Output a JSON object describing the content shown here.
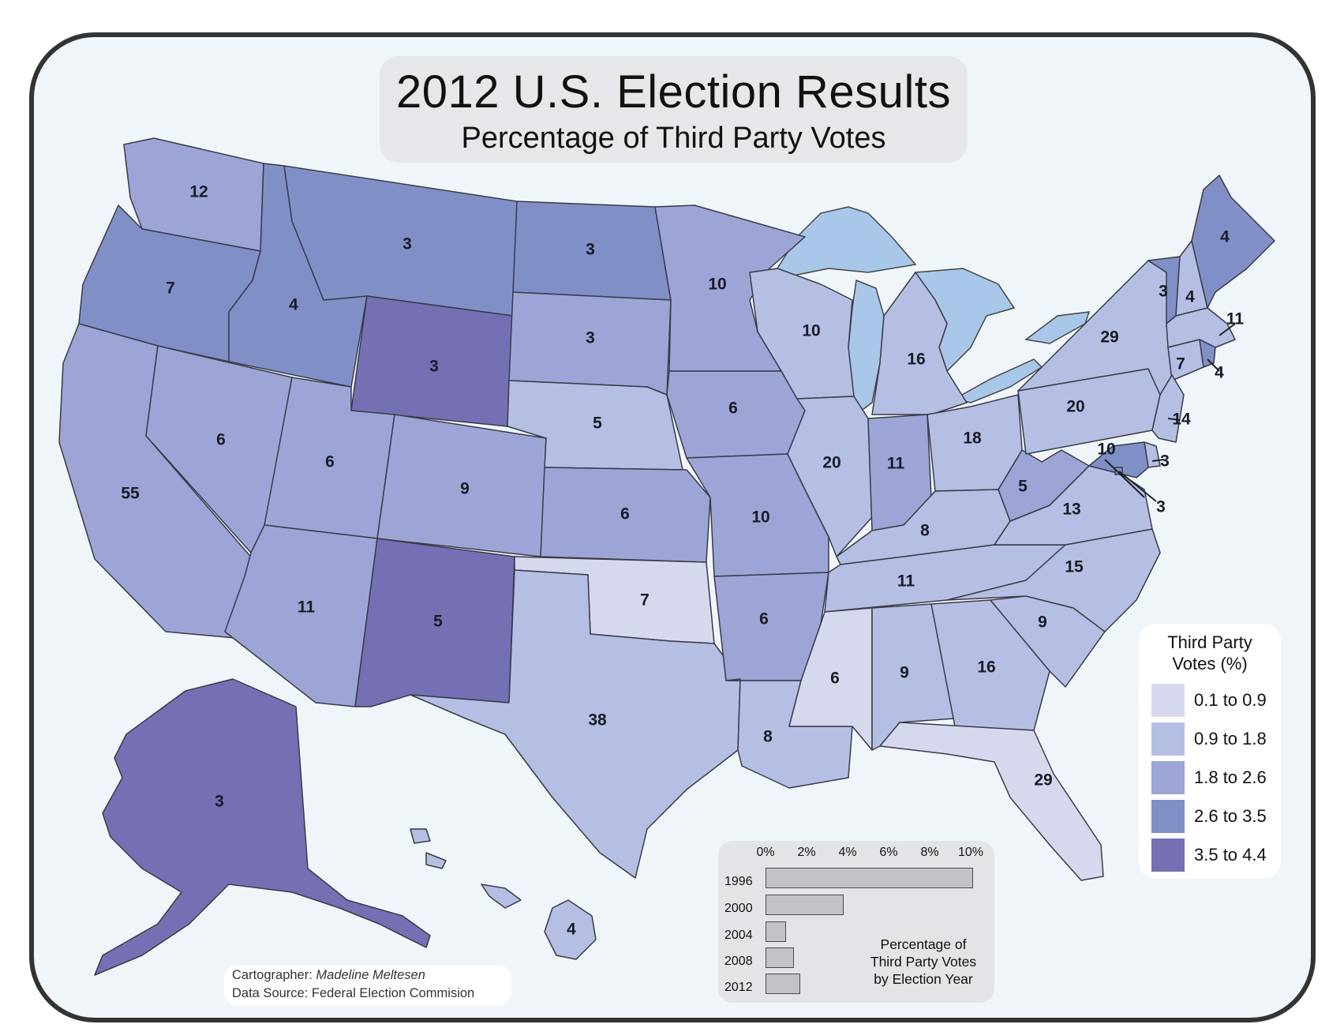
{
  "title": "2012 U.S. Election Results",
  "subtitle": "Percentage of Third Party Votes",
  "colors": {
    "background": "#f0f5fa",
    "frame": "#333333",
    "class_0": "#d6d9ee",
    "class_1": "#b4bfe3",
    "class_2": "#9ca5d6",
    "class_3": "#8090c7",
    "class_4": "#7470b3",
    "water": "#a9c7e8"
  },
  "legend": {
    "title_line1": "Third Party",
    "title_line2": "Votes (%)",
    "items": [
      {
        "label": "0.1 to 0.9",
        "color": "#d6d9ee"
      },
      {
        "label": "0.9 to 1.8",
        "color": "#b4bfe3"
      },
      {
        "label": "1.8 to 2.6",
        "color": "#9ca5d6"
      },
      {
        "label": "2.6 to 3.5",
        "color": "#8090c7"
      },
      {
        "label": "3.5 to 4.4",
        "color": "#7470b3"
      }
    ]
  },
  "states": [
    {
      "name": "WA",
      "electoral_votes": "12",
      "class": 2
    },
    {
      "name": "OR",
      "electoral_votes": "7",
      "class": 3
    },
    {
      "name": "CA",
      "electoral_votes": "55",
      "class": 2
    },
    {
      "name": "NV",
      "electoral_votes": "6",
      "class": 2
    },
    {
      "name": "ID",
      "electoral_votes": "4",
      "class": 3
    },
    {
      "name": "MT",
      "electoral_votes": "3",
      "class": 3
    },
    {
      "name": "WY",
      "electoral_votes": "3",
      "class": 4
    },
    {
      "name": "UT",
      "electoral_votes": "6",
      "class": 2
    },
    {
      "name": "AZ",
      "electoral_votes": "11",
      "class": 2
    },
    {
      "name": "CO",
      "electoral_votes": "9",
      "class": 2
    },
    {
      "name": "NM",
      "electoral_votes": "5",
      "class": 4
    },
    {
      "name": "ND",
      "electoral_votes": "3",
      "class": 3
    },
    {
      "name": "SD",
      "electoral_votes": "3",
      "class": 2
    },
    {
      "name": "NE",
      "electoral_votes": "5",
      "class": 1
    },
    {
      "name": "KS",
      "electoral_votes": "6",
      "class": 2
    },
    {
      "name": "OK",
      "electoral_votes": "7",
      "class": 0
    },
    {
      "name": "TX",
      "electoral_votes": "38",
      "class": 1
    },
    {
      "name": "MN",
      "electoral_votes": "10",
      "class": 2
    },
    {
      "name": "IA",
      "electoral_votes": "6",
      "class": 2
    },
    {
      "name": "MO",
      "electoral_votes": "10",
      "class": 2
    },
    {
      "name": "AR",
      "electoral_votes": "6",
      "class": 2
    },
    {
      "name": "LA",
      "electoral_votes": "8",
      "class": 1
    },
    {
      "name": "WI",
      "electoral_votes": "10",
      "class": 1
    },
    {
      "name": "IL",
      "electoral_votes": "20",
      "class": 1
    },
    {
      "name": "MI",
      "electoral_votes": "16",
      "class": 1
    },
    {
      "name": "IN",
      "electoral_votes": "11",
      "class": 2
    },
    {
      "name": "OH",
      "electoral_votes": "18",
      "class": 1
    },
    {
      "name": "KY",
      "electoral_votes": "8",
      "class": 1
    },
    {
      "name": "TN",
      "electoral_votes": "11",
      "class": 1
    },
    {
      "name": "MS",
      "electoral_votes": "6",
      "class": 0
    },
    {
      "name": "AL",
      "electoral_votes": "9",
      "class": 1
    },
    {
      "name": "GA",
      "electoral_votes": "16",
      "class": 1
    },
    {
      "name": "FL",
      "electoral_votes": "29",
      "class": 0
    },
    {
      "name": "SC",
      "electoral_votes": "9",
      "class": 1
    },
    {
      "name": "NC",
      "electoral_votes": "15",
      "class": 1
    },
    {
      "name": "VA",
      "electoral_votes": "13",
      "class": 1
    },
    {
      "name": "WV",
      "electoral_votes": "5",
      "class": 2
    },
    {
      "name": "PA",
      "electoral_votes": "20",
      "class": 1
    },
    {
      "name": "NY",
      "electoral_votes": "29",
      "class": 1
    },
    {
      "name": "VT",
      "electoral_votes": "3",
      "class": 3
    },
    {
      "name": "NH",
      "electoral_votes": "4",
      "class": 1
    },
    {
      "name": "ME",
      "electoral_votes": "4",
      "class": 3
    },
    {
      "name": "MA",
      "electoral_votes": "11",
      "class": 1
    },
    {
      "name": "CT",
      "electoral_votes": "7",
      "class": 1
    },
    {
      "name": "RI",
      "electoral_votes": "4",
      "class": 3
    },
    {
      "name": "NJ",
      "electoral_votes": "14",
      "class": 1
    },
    {
      "name": "DE",
      "electoral_votes": "3",
      "class": 1
    },
    {
      "name": "MD",
      "electoral_votes": "10",
      "class": 3
    },
    {
      "name": "DC",
      "electoral_votes": "3",
      "class": 3
    },
    {
      "name": "AK",
      "electoral_votes": "3",
      "class": 4
    },
    {
      "name": "HI",
      "electoral_votes": "4",
      "class": 1
    }
  ],
  "inset_chart": {
    "caption_line1": "Percentage of",
    "caption_line2": "Third Party Votes",
    "caption_line3": "by Election Year",
    "ticks": [
      "0%",
      "2%",
      "4%",
      "6%",
      "8%",
      "10%"
    ],
    "years": [
      "1996",
      "2000",
      "2004",
      "2008",
      "2012"
    ],
    "values": [
      10.1,
      3.8,
      1.0,
      1.4,
      1.7
    ],
    "xlim": [
      0,
      10
    ]
  },
  "credits": {
    "cartographer_label": "Cartographer:",
    "cartographer_name": "Madeline Meltesen",
    "source": "Data Source: Federal Election Commision"
  }
}
